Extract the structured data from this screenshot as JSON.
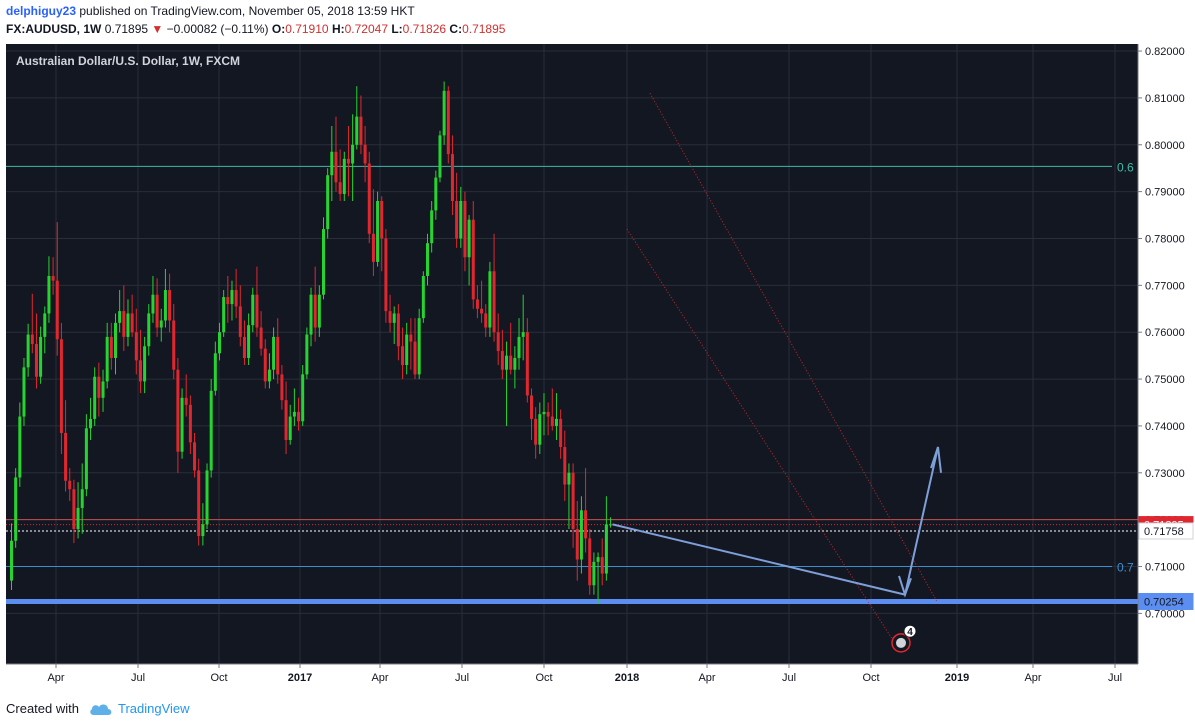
{
  "header": {
    "publisher": "delphiguy23",
    "published_text": "published on TradingView.com, November 05, 2018 13:59 HKT",
    "symbol": "FX:AUDUSD, 1W",
    "last": "0.71895",
    "change": "−0.00082 (−0.11%)",
    "o_label": "O:",
    "o_value": "0.71910",
    "h_label": "H:",
    "h_value": "0.72047",
    "l_label": "L:",
    "l_value": "0.71826",
    "c_label": "C:",
    "c_value": "0.71895"
  },
  "footer": {
    "created_with": "Created with",
    "brand": "TradingView"
  },
  "colors": {
    "background": "#131722",
    "grid": "#2a2e39",
    "up": "#26d431",
    "down": "#e0272f",
    "teal_line": "#3fb9a7",
    "blue_line": "#3a8fd1",
    "support": "#5b8ef0",
    "channel": "#c62828",
    "arrow": "#7e9fd8"
  },
  "chart_data": {
    "type": "candlestick",
    "title": "Australian Dollar/U.S. Dollar, 1W, FXCM",
    "x_axis_labels": [
      "Apr",
      "Jul",
      "Oct",
      "2017",
      "Apr",
      "Jul",
      "Oct",
      "2018",
      "Apr",
      "Jul",
      "Oct",
      "2019",
      "Apr",
      "Jul"
    ],
    "y_axis_labels": [
      "0.82000",
      "0.81000",
      "0.80000",
      "0.79000",
      "0.78000",
      "0.77000",
      "0.76000",
      "0.75000",
      "0.74000",
      "0.73000",
      "0.72000",
      "0.71000",
      "0.70000"
    ],
    "ylim": [
      0.6892,
      0.8215
    ],
    "grid": true,
    "levels": [
      {
        "value": 0.7954,
        "label": "0.6"
      },
      {
        "value": 0.71,
        "label": "0.7"
      }
    ],
    "support_level": 0.70254,
    "price_tags": [
      {
        "value": 0.71895,
        "label": "0.71895"
      },
      {
        "value": 0.71758,
        "label": "0.71758"
      },
      {
        "value": 0.70254,
        "label": "0.70254"
      }
    ],
    "event_badge": "4",
    "candles": [
      [
        0.707,
        0.7192,
        0.705,
        0.7155
      ],
      [
        0.7155,
        0.731,
        0.714,
        0.729
      ],
      [
        0.729,
        0.745,
        0.727,
        0.742
      ],
      [
        0.742,
        0.7545,
        0.74,
        0.7525
      ],
      [
        0.7525,
        0.7618,
        0.7505,
        0.7595
      ],
      [
        0.7595,
        0.7682,
        0.7555,
        0.7575
      ],
      [
        0.7575,
        0.764,
        0.748,
        0.7505
      ],
      [
        0.7505,
        0.7612,
        0.749,
        0.759
      ],
      [
        0.759,
        0.7655,
        0.7555,
        0.764
      ],
      [
        0.764,
        0.7762,
        0.762,
        0.772
      ],
      [
        0.772,
        0.776,
        0.768,
        0.771
      ],
      [
        0.771,
        0.7835,
        0.755,
        0.7585
      ],
      [
        0.7585,
        0.762,
        0.734,
        0.7385
      ],
      [
        0.7385,
        0.7455,
        0.726,
        0.7283
      ],
      [
        0.7283,
        0.731,
        0.724,
        0.7265
      ],
      [
        0.7265,
        0.7285,
        0.715,
        0.718
      ],
      [
        0.718,
        0.728,
        0.716,
        0.7225
      ],
      [
        0.7225,
        0.732,
        0.717,
        0.7265
      ],
      [
        0.7265,
        0.7425,
        0.725,
        0.7395
      ],
      [
        0.7395,
        0.746,
        0.737,
        0.7415
      ],
      [
        0.7415,
        0.7525,
        0.74,
        0.7505
      ],
      [
        0.7505,
        0.7535,
        0.742,
        0.746
      ],
      [
        0.746,
        0.752,
        0.743,
        0.7495
      ],
      [
        0.7495,
        0.762,
        0.748,
        0.759
      ],
      [
        0.759,
        0.762,
        0.752,
        0.7545
      ],
      [
        0.7545,
        0.764,
        0.751,
        0.762
      ],
      [
        0.762,
        0.769,
        0.76,
        0.7645
      ],
      [
        0.7645,
        0.77,
        0.756,
        0.759
      ],
      [
        0.759,
        0.767,
        0.757,
        0.764
      ],
      [
        0.764,
        0.768,
        0.759,
        0.76
      ],
      [
        0.76,
        0.765,
        0.751,
        0.754
      ],
      [
        0.754,
        0.7605,
        0.747,
        0.7495
      ],
      [
        0.7495,
        0.759,
        0.747,
        0.757
      ],
      [
        0.757,
        0.766,
        0.755,
        0.764
      ],
      [
        0.764,
        0.772,
        0.762,
        0.768
      ],
      [
        0.768,
        0.7715,
        0.759,
        0.761
      ],
      [
        0.761,
        0.765,
        0.758,
        0.7625
      ],
      [
        0.7625,
        0.7735,
        0.761,
        0.769
      ],
      [
        0.769,
        0.7725,
        0.76,
        0.7625
      ],
      [
        0.7625,
        0.766,
        0.75,
        0.752
      ],
      [
        0.752,
        0.7545,
        0.73,
        0.7345
      ],
      [
        0.7345,
        0.748,
        0.733,
        0.746
      ],
      [
        0.746,
        0.751,
        0.742,
        0.7445
      ],
      [
        0.7445,
        0.7465,
        0.734,
        0.7365
      ],
      [
        0.7365,
        0.7385,
        0.729,
        0.7305
      ],
      [
        0.7305,
        0.733,
        0.7145,
        0.7165
      ],
      [
        0.7165,
        0.7235,
        0.7145,
        0.719
      ],
      [
        0.719,
        0.732,
        0.718,
        0.7305
      ],
      [
        0.7305,
        0.75,
        0.729,
        0.7475
      ],
      [
        0.7475,
        0.758,
        0.7465,
        0.7555
      ],
      [
        0.7555,
        0.762,
        0.754,
        0.76
      ],
      [
        0.76,
        0.769,
        0.759,
        0.7675
      ],
      [
        0.7675,
        0.772,
        0.762,
        0.766
      ],
      [
        0.766,
        0.771,
        0.7625,
        0.769
      ],
      [
        0.769,
        0.7735,
        0.763,
        0.7655
      ],
      [
        0.7655,
        0.77,
        0.757,
        0.759
      ],
      [
        0.759,
        0.7625,
        0.753,
        0.7545
      ],
      [
        0.7545,
        0.764,
        0.753,
        0.7615
      ],
      [
        0.7615,
        0.7695,
        0.76,
        0.768
      ],
      [
        0.768,
        0.774,
        0.759,
        0.761
      ],
      [
        0.761,
        0.7645,
        0.755,
        0.7565
      ],
      [
        0.7565,
        0.7585,
        0.748,
        0.7495
      ],
      [
        0.7495,
        0.7555,
        0.748,
        0.752
      ],
      [
        0.752,
        0.761,
        0.75,
        0.759
      ],
      [
        0.759,
        0.763,
        0.749,
        0.751
      ],
      [
        0.751,
        0.753,
        0.7435,
        0.7455
      ],
      [
        0.7455,
        0.7495,
        0.734,
        0.737
      ],
      [
        0.737,
        0.7445,
        0.736,
        0.742
      ],
      [
        0.742,
        0.748,
        0.74,
        0.743
      ],
      [
        0.743,
        0.746,
        0.739,
        0.741
      ],
      [
        0.741,
        0.753,
        0.74,
        0.751
      ],
      [
        0.751,
        0.761,
        0.75,
        0.7595
      ],
      [
        0.7595,
        0.7695,
        0.757,
        0.768
      ],
      [
        0.768,
        0.774,
        0.758,
        0.761
      ],
      [
        0.761,
        0.77,
        0.759,
        0.768
      ],
      [
        0.768,
        0.7845,
        0.767,
        0.782
      ],
      [
        0.782,
        0.795,
        0.78,
        0.7935
      ],
      [
        0.7935,
        0.804,
        0.788,
        0.7985
      ],
      [
        0.7985,
        0.806,
        0.79,
        0.792
      ],
      [
        0.792,
        0.799,
        0.788,
        0.7895
      ],
      [
        0.7895,
        0.7985,
        0.788,
        0.797
      ],
      [
        0.797,
        0.804,
        0.789,
        0.796
      ],
      [
        0.796,
        0.8065,
        0.788,
        0.8
      ],
      [
        0.8,
        0.8125,
        0.799,
        0.806
      ],
      [
        0.806,
        0.8105,
        0.798,
        0.8
      ],
      [
        0.8,
        0.804,
        0.792,
        0.796
      ],
      [
        0.796,
        0.7985,
        0.779,
        0.781
      ],
      [
        0.781,
        0.7905,
        0.772,
        0.775
      ],
      [
        0.775,
        0.79,
        0.774,
        0.788
      ],
      [
        0.788,
        0.789,
        0.773,
        0.78
      ],
      [
        0.78,
        0.782,
        0.762,
        0.7645
      ],
      [
        0.7645,
        0.768,
        0.76,
        0.762
      ],
      [
        0.762,
        0.7655,
        0.7575,
        0.764
      ],
      [
        0.764,
        0.766,
        0.754,
        0.757
      ],
      [
        0.757,
        0.761,
        0.75,
        0.753
      ],
      [
        0.753,
        0.762,
        0.751,
        0.7595
      ],
      [
        0.7595,
        0.763,
        0.752,
        0.758
      ],
      [
        0.758,
        0.763,
        0.75,
        0.751
      ],
      [
        0.751,
        0.765,
        0.75,
        0.763
      ],
      [
        0.763,
        0.773,
        0.762,
        0.772
      ],
      [
        0.772,
        0.781,
        0.77,
        0.779
      ],
      [
        0.779,
        0.788,
        0.777,
        0.786
      ],
      [
        0.786,
        0.7945,
        0.784,
        0.793
      ],
      [
        0.793,
        0.803,
        0.792,
        0.802
      ],
      [
        0.802,
        0.8135,
        0.8,
        0.8115
      ],
      [
        0.8115,
        0.8125,
        0.796,
        0.798
      ],
      [
        0.798,
        0.802,
        0.785,
        0.788
      ],
      [
        0.788,
        0.794,
        0.778,
        0.78
      ],
      [
        0.78,
        0.791,
        0.778,
        0.788
      ],
      [
        0.788,
        0.79,
        0.773,
        0.776
      ],
      [
        0.776,
        0.785,
        0.77,
        0.784
      ],
      [
        0.784,
        0.788,
        0.765,
        0.767
      ],
      [
        0.767,
        0.77,
        0.763,
        0.765
      ],
      [
        0.765,
        0.771,
        0.762,
        0.764
      ],
      [
        0.764,
        0.766,
        0.759,
        0.761
      ],
      [
        0.761,
        0.775,
        0.759,
        0.773
      ],
      [
        0.773,
        0.781,
        0.758,
        0.76
      ],
      [
        0.76,
        0.764,
        0.753,
        0.756
      ],
      [
        0.756,
        0.7605,
        0.75,
        0.752
      ],
      [
        0.752,
        0.758,
        0.74,
        0.755
      ],
      [
        0.755,
        0.762,
        0.751,
        0.752
      ],
      [
        0.752,
        0.757,
        0.748,
        0.7545
      ],
      [
        0.7545,
        0.763,
        0.752,
        0.759
      ],
      [
        0.759,
        0.768,
        0.754,
        0.76
      ],
      [
        0.76,
        0.763,
        0.745,
        0.7465
      ],
      [
        0.7465,
        0.748,
        0.737,
        0.7415
      ],
      [
        0.7415,
        0.744,
        0.733,
        0.736
      ],
      [
        0.736,
        0.745,
        0.734,
        0.7425
      ],
      [
        0.7425,
        0.747,
        0.738,
        0.743
      ],
      [
        0.743,
        0.745,
        0.738,
        0.742
      ],
      [
        0.742,
        0.748,
        0.739,
        0.74
      ],
      [
        0.74,
        0.747,
        0.737,
        0.7415
      ],
      [
        0.7415,
        0.7435,
        0.733,
        0.7355
      ],
      [
        0.7355,
        0.739,
        0.724,
        0.7275
      ],
      [
        0.7275,
        0.732,
        0.718,
        0.73
      ],
      [
        0.73,
        0.732,
        0.714,
        0.718
      ],
      [
        0.718,
        0.724,
        0.707,
        0.7115
      ],
      [
        0.7115,
        0.725,
        0.7085,
        0.722
      ],
      [
        0.722,
        0.731,
        0.713,
        0.716
      ],
      [
        0.716,
        0.718,
        0.704,
        0.706
      ],
      [
        0.706,
        0.713,
        0.704,
        0.711
      ],
      [
        0.711,
        0.713,
        0.702,
        0.712
      ],
      [
        0.712,
        0.716,
        0.706,
        0.7085
      ],
      [
        0.7085,
        0.725,
        0.707,
        0.719
      ],
      [
        0.719,
        0.7205,
        0.7183,
        0.719
      ]
    ]
  }
}
